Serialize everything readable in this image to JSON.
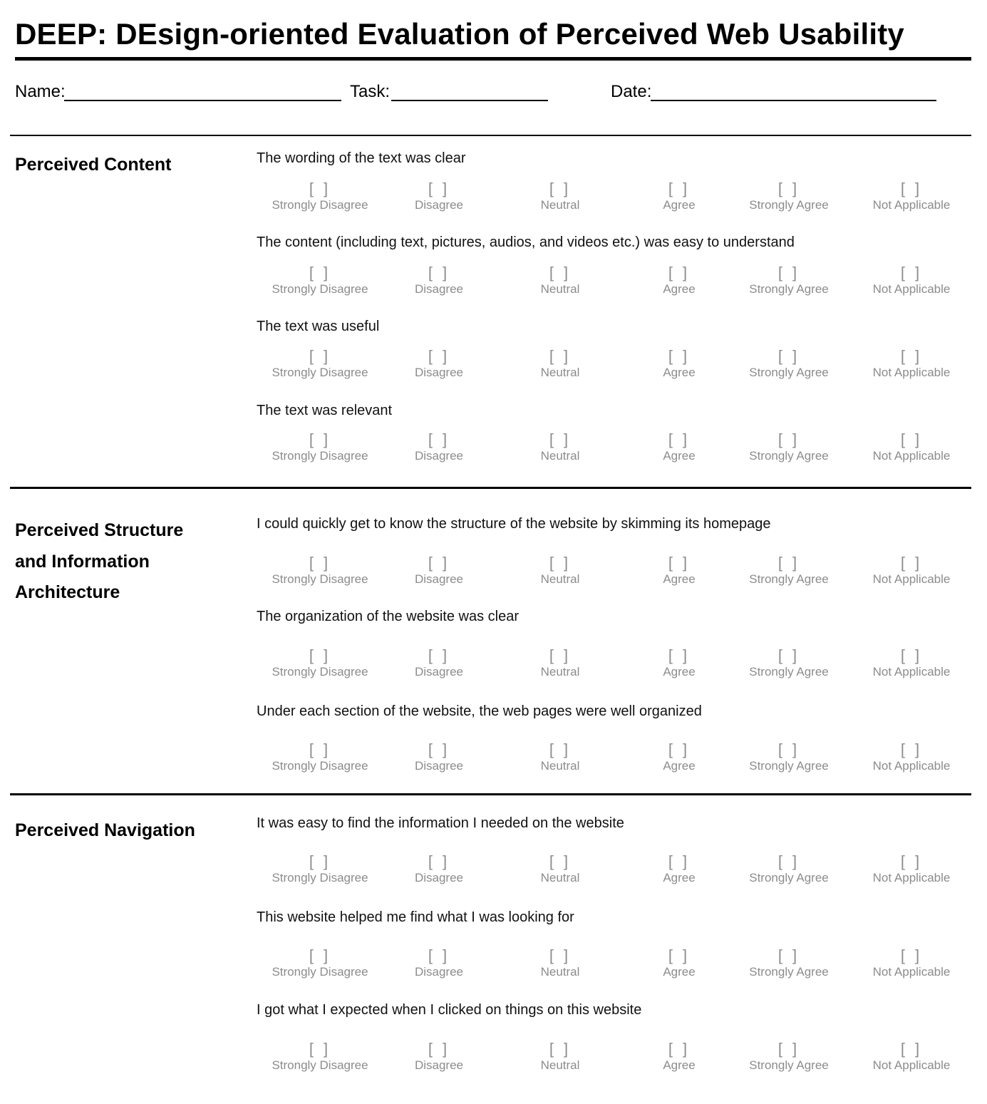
{
  "title": "DEEP:  DEsign-oriented Evaluation of Perceived Web Usability",
  "fields": {
    "name_label": "Name:",
    "task_label": "Task:",
    "date_label": "Date:"
  },
  "scale": {
    "box": "[ ]",
    "options": [
      "Strongly Disagree",
      "Disagree",
      "Neutral",
      "Agree",
      "Strongly Agree",
      "Not Applicable"
    ]
  },
  "sections": [
    {
      "title": "Perceived Content",
      "questions": [
        "The wording of the text was clear",
        "The content (including text, pictures, audios, and videos etc.) was easy to understand",
        "The text was useful",
        "The text was relevant"
      ]
    },
    {
      "title": "Perceived Structure and Information Architecture",
      "title_lines": [
        "Perceived Structure",
        "and Information",
        "Architecture"
      ],
      "questions": [
        "I could quickly get to know the structure of the website by skimming its homepage",
        "The organization of the website was clear",
        "Under each section of the website, the web pages were well organized"
      ]
    },
    {
      "title": "Perceived Navigation",
      "questions": [
        "It was easy to find the information I needed on the website",
        "This website helped me find what I was looking for",
        "I got what I expected when I clicked on things on this website"
      ]
    }
  ]
}
